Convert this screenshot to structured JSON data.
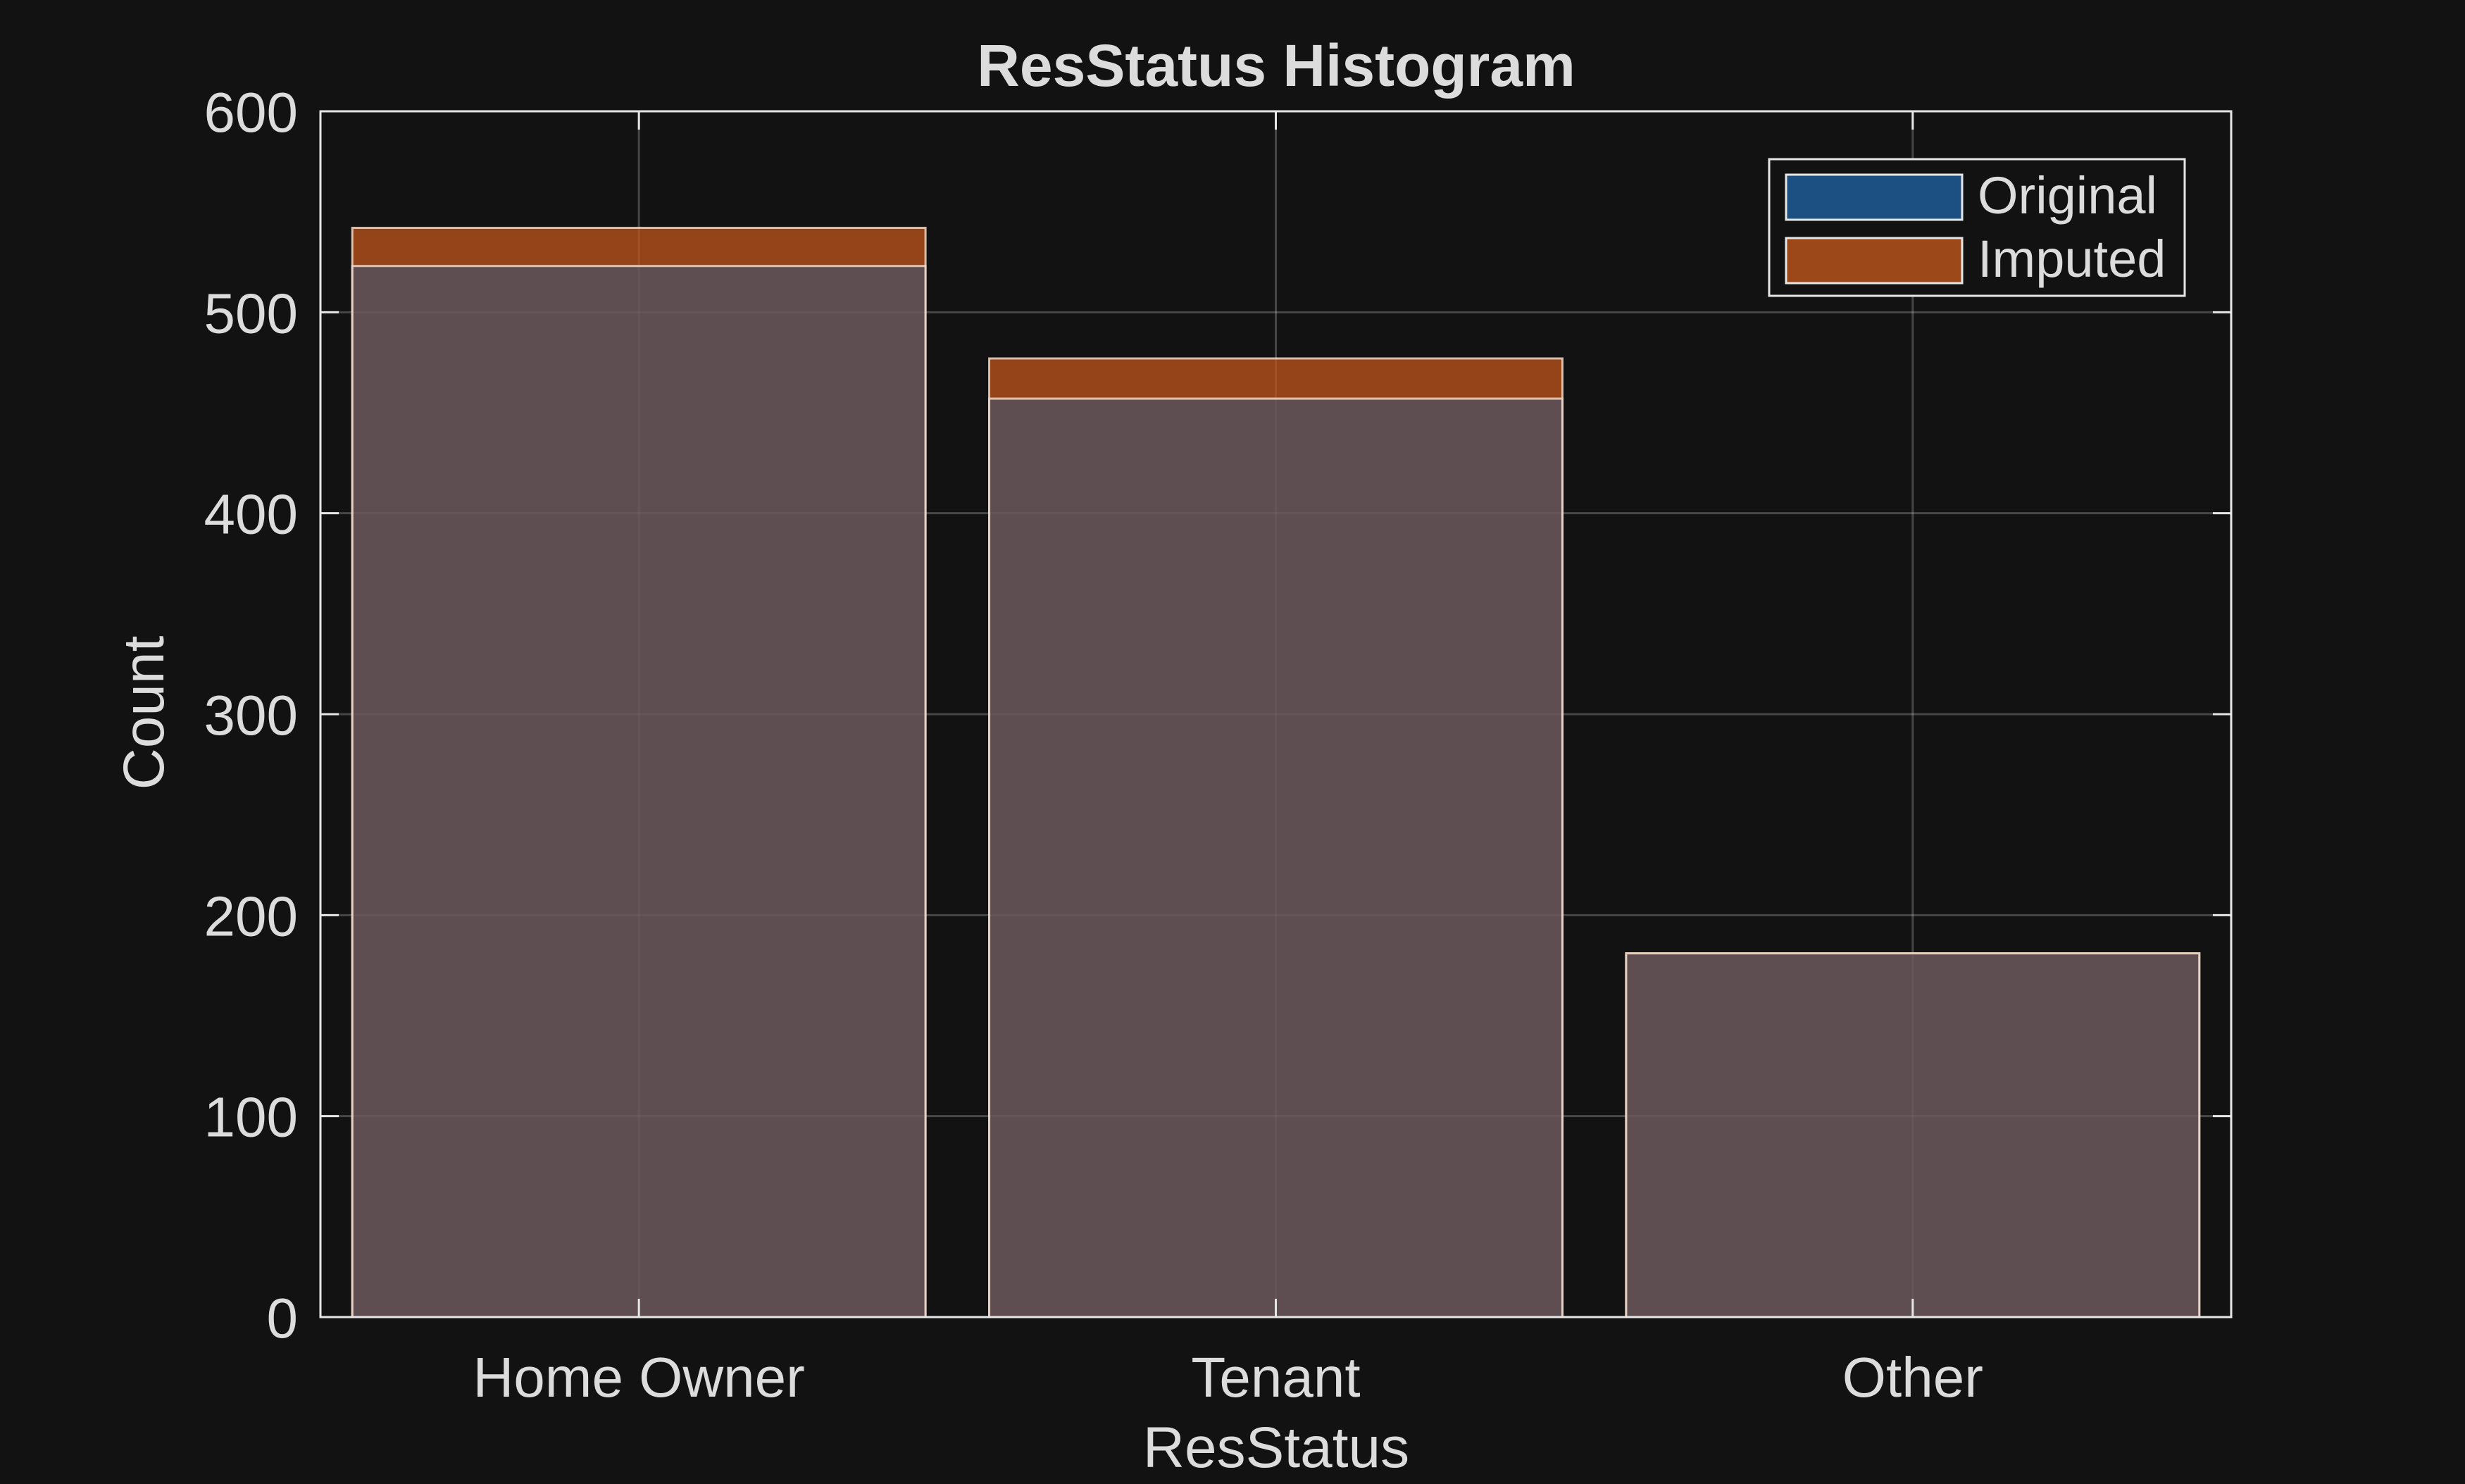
{
  "chart_data": {
    "type": "bar",
    "title": "ResStatus Histogram",
    "xlabel": "ResStatus",
    "ylabel": "Count",
    "categories": [
      "Home Owner",
      "Tenant",
      "Other"
    ],
    "series": [
      {
        "name": "Original",
        "values": [
          523,
          457,
          181
        ],
        "color": "#1f5a96"
      },
      {
        "name": "Imputed",
        "values": [
          542,
          477,
          181
        ],
        "color": "#c0561b"
      }
    ],
    "ylim": [
      0,
      600
    ],
    "yticks": [
      0,
      100,
      200,
      300,
      400,
      500,
      600
    ],
    "grid": true,
    "legend_position": "top-right",
    "background": "#121212",
    "text_color": "#dcdcdc"
  }
}
